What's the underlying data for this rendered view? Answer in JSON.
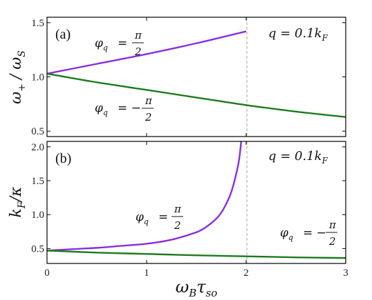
{
  "colors": {
    "purple": "#8a2be2",
    "green": "#1a7a1a",
    "frame": "#000000",
    "dashed": "#b0b0b0"
  },
  "chart_data": [
    {
      "type": "line",
      "panel_label": "(a)",
      "ylabel": "ω₊ / ω_S",
      "xlabel": "",
      "xlim": [
        0,
        3
      ],
      "ylim": [
        0.45,
        1.55
      ],
      "xticks": [
        "",
        "",
        "",
        ""
      ],
      "yticks": [
        {
          "v": 0.5,
          "label": "0.5"
        },
        {
          "v": 1.0,
          "label": "1.0"
        },
        {
          "v": 1.5,
          "label": "1.5"
        }
      ],
      "annotation": "q = 0.1k_F",
      "vline_x": 2,
      "series": [
        {
          "name": "φ_q = π/2",
          "color_key": "purple",
          "x": [
            0,
            0.5,
            1.0,
            1.5,
            2.0
          ],
          "y": [
            1.03,
            1.12,
            1.21,
            1.31,
            1.42
          ]
        },
        {
          "name": "φ_q = −π/2",
          "color_key": "green",
          "x": [
            0,
            0.5,
            1.0,
            1.5,
            2.0,
            2.5,
            3.0
          ],
          "y": [
            1.03,
            0.95,
            0.88,
            0.81,
            0.74,
            0.68,
            0.63
          ]
        }
      ]
    },
    {
      "type": "line",
      "panel_label": "(b)",
      "ylabel": "k_F / κ",
      "xlabel": "ω_B τ_so",
      "xlim": [
        0,
        3
      ],
      "ylim": [
        0.28,
        2.08
      ],
      "xticks": [
        {
          "v": 0,
          "label": "0"
        },
        {
          "v": 1,
          "label": "1"
        },
        {
          "v": 2,
          "label": "2"
        },
        {
          "v": 3,
          "label": "3"
        }
      ],
      "yticks": [
        {
          "v": 0.5,
          "label": "0.5"
        },
        {
          "v": 1.0,
          "label": "1.0"
        },
        {
          "v": 1.5,
          "label": "1.5"
        },
        {
          "v": 2.0,
          "label": "2.0"
        }
      ],
      "annotation": "q = 0.1k_F",
      "vline_x": 2,
      "series": [
        {
          "name": "φ_q = π/2",
          "color_key": "purple",
          "x": [
            0,
            0.25,
            0.5,
            0.75,
            1.0,
            1.25,
            1.5,
            1.6,
            1.7,
            1.75,
            1.8,
            1.85,
            1.9,
            1.93,
            1.95
          ],
          "y": [
            0.47,
            0.49,
            0.51,
            0.54,
            0.57,
            0.63,
            0.74,
            0.82,
            0.94,
            1.03,
            1.16,
            1.33,
            1.6,
            1.82,
            2.08
          ]
        },
        {
          "name": "φ_q = −π/2",
          "color_key": "green",
          "x": [
            0,
            0.5,
            1.0,
            1.5,
            2.0,
            2.5,
            3.0
          ],
          "y": [
            0.47,
            0.44,
            0.42,
            0.4,
            0.385,
            0.37,
            0.36
          ]
        }
      ]
    }
  ],
  "text": {
    "ylabel_a_main": "ω",
    "ylabel_a_sub": "+",
    "ylabel_a_den": "/ ω",
    "ylabel_a_den_sub": "S",
    "ylabel_b_num": "k",
    "ylabel_b_num_sub": "F",
    "ylabel_b_den": "/κ",
    "xlabel_main": "ω",
    "xlabel_sub1": "B",
    "xlabel_tau": "τ",
    "xlabel_sub2": "so",
    "q_label": "q = 0.1k",
    "q_sub": "F",
    "phi": "φ",
    "phi_sub": "q",
    "eq_plus": "=",
    "eq_minus": "= −",
    "pi": "π",
    "two": "2"
  }
}
